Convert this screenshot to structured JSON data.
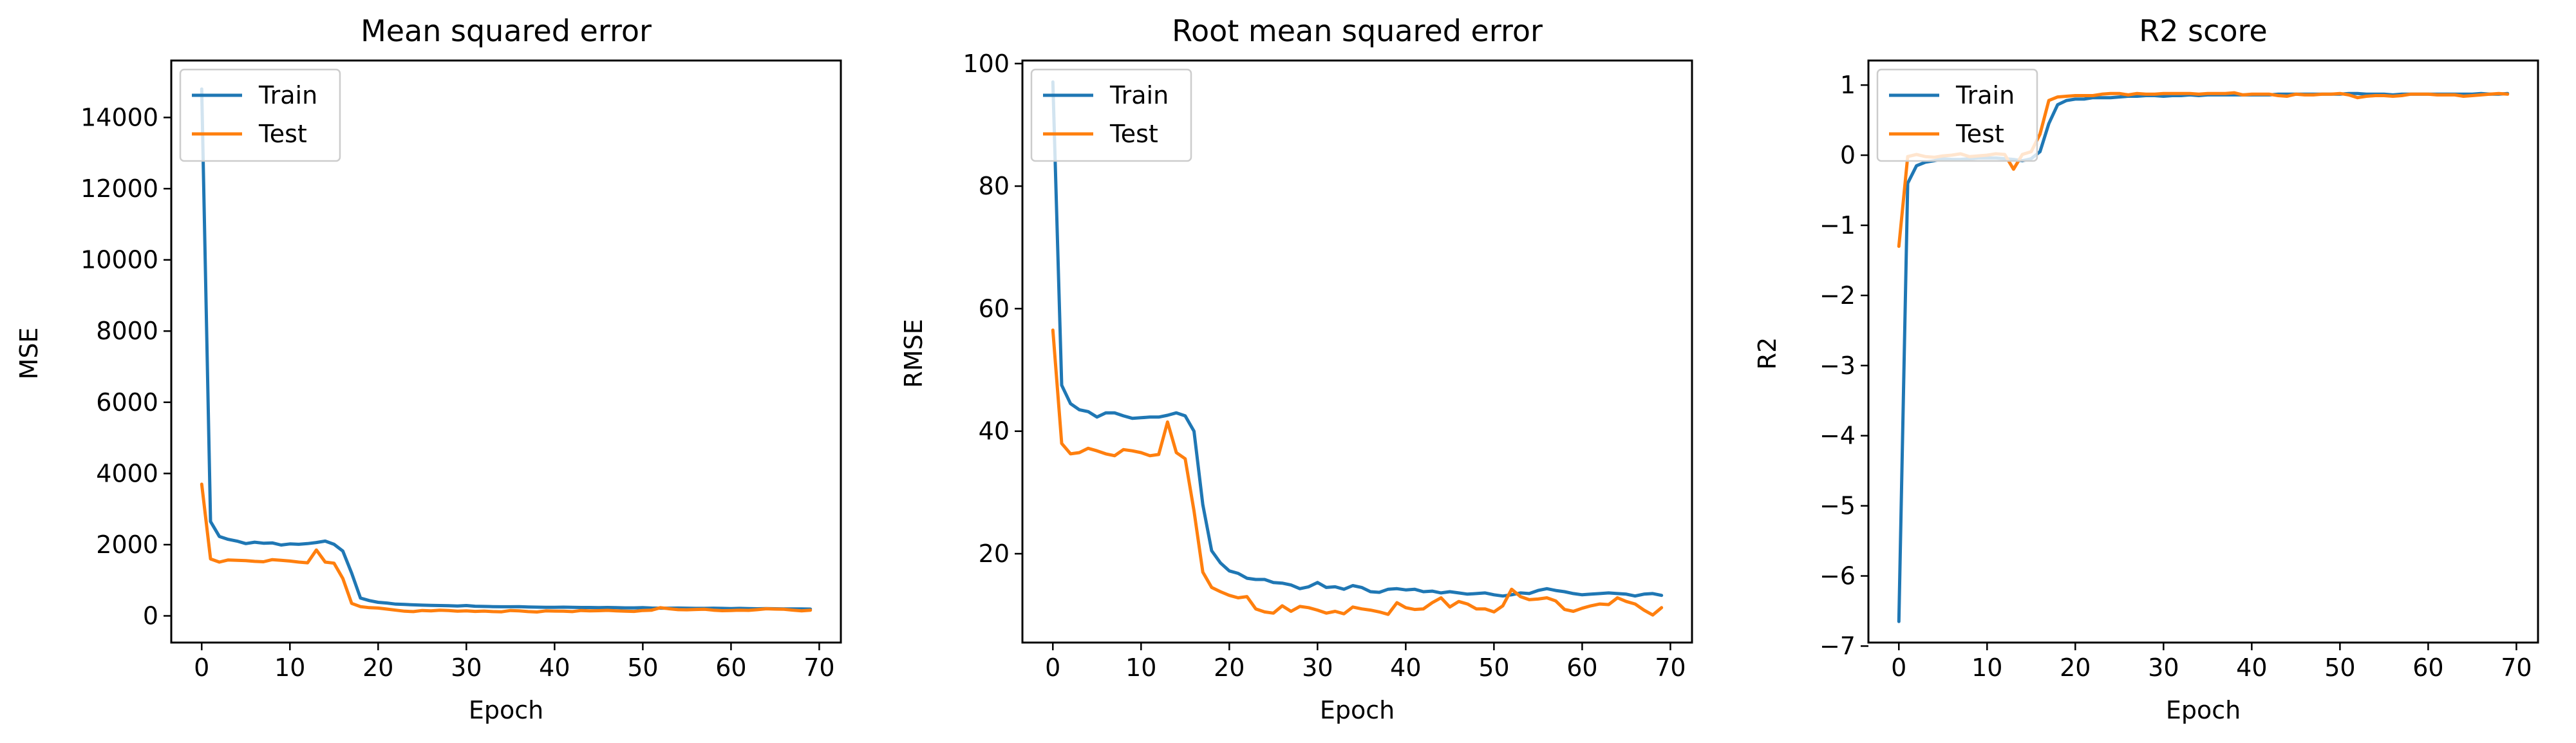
{
  "colors": {
    "train": "#1f77b4",
    "test": "#ff7f0e"
  },
  "chart_data": [
    {
      "type": "line",
      "title": "Mean squared error",
      "xlabel": "Epoch",
      "ylabel": "MSE",
      "xlim": [
        -3.45,
        72.45
      ],
      "ylim": [
        -750,
        15600
      ],
      "xticks": [
        0,
        10,
        20,
        30,
        40,
        50,
        60,
        70
      ],
      "yticks": [
        0,
        2000,
        4000,
        6000,
        8000,
        10000,
        12000,
        14000
      ],
      "ytick_labels": [
        "0",
        "2000",
        "4000",
        "6000",
        "8000",
        "10000",
        "12000",
        "14000"
      ],
      "legend": "upper-left",
      "series": [
        {
          "name": "Train",
          "color": "#1f77b4",
          "values": [
            14800,
            2650,
            2230,
            2150,
            2100,
            2030,
            2070,
            2040,
            2050,
            1990,
            2020,
            2010,
            2030,
            2060,
            2100,
            2010,
            1820,
            1200,
            500,
            430,
            380,
            360,
            330,
            320,
            310,
            300,
            295,
            290,
            285,
            275,
            290,
            270,
            265,
            260,
            255,
            255,
            260,
            250,
            245,
            240,
            240,
            245,
            240,
            235,
            235,
            230,
            235,
            230,
            225,
            225,
            230,
            220,
            215,
            215,
            220,
            215,
            210,
            210,
            215,
            210,
            205,
            210,
            205,
            200,
            205,
            200,
            195,
            195,
            195,
            190
          ]
        },
        {
          "name": "Test",
          "color": "#ff7f0e",
          "values": [
            3700,
            1600,
            1510,
            1570,
            1560,
            1550,
            1530,
            1520,
            1580,
            1560,
            1540,
            1510,
            1490,
            1850,
            1510,
            1480,
            1050,
            350,
            260,
            230,
            220,
            190,
            160,
            130,
            120,
            150,
            140,
            160,
            150,
            130,
            140,
            125,
            135,
            120,
            115,
            150,
            140,
            120,
            110,
            140,
            135,
            130,
            120,
            150,
            140,
            145,
            155,
            140,
            130,
            125,
            150,
            160,
            230,
            200,
            175,
            170,
            180,
            185,
            160,
            145,
            150,
            160,
            155,
            175,
            200,
            190,
            185,
            160,
            140,
            160
          ]
        }
      ]
    },
    {
      "type": "line",
      "title": "Root mean squared error",
      "xlabel": "Epoch",
      "ylabel": "RMSE",
      "xlim": [
        -3.45,
        72.45
      ],
      "ylim": [
        5.5,
        100.5
      ],
      "xticks": [
        0,
        10,
        20,
        30,
        40,
        50,
        60,
        70
      ],
      "yticks": [
        20,
        40,
        60,
        80,
        100
      ],
      "ytick_labels": [
        "20",
        "40",
        "60",
        "80",
        "100"
      ],
      "legend": "upper-left",
      "series": [
        {
          "name": "Train",
          "color": "#1f77b4",
          "values": [
            97,
            47.5,
            44.5,
            43.5,
            43.2,
            42.3,
            43,
            43,
            42.5,
            42.1,
            42.2,
            42.3,
            42.3,
            42.6,
            43,
            42.5,
            40,
            28,
            20.5,
            18.5,
            17.2,
            16.8,
            16,
            15.8,
            15.8,
            15.3,
            15.2,
            14.9,
            14.3,
            14.6,
            15.3,
            14.5,
            14.6,
            14.2,
            14.8,
            14.5,
            13.8,
            13.7,
            14.2,
            14.3,
            14.1,
            14.2,
            13.8,
            13.9,
            13.6,
            13.8,
            13.6,
            13.4,
            13.5,
            13.6,
            13.3,
            13.1,
            13.3,
            13.6,
            13.5,
            14,
            14.3,
            14,
            13.8,
            13.5,
            13.3,
            13.4,
            13.5,
            13.6,
            13.5,
            13.4,
            13.1,
            13.4,
            13.5,
            13.2
          ]
        },
        {
          "name": "Test",
          "color": "#ff7f0e",
          "values": [
            56.5,
            38,
            36.3,
            36.5,
            37.2,
            36.8,
            36.3,
            36,
            37,
            36.8,
            36.5,
            36,
            36.2,
            41.5,
            36.5,
            35.5,
            27,
            17,
            14.5,
            13.8,
            13.2,
            12.8,
            13,
            11,
            10.5,
            10.3,
            11.5,
            10.6,
            11.4,
            11.2,
            10.8,
            10.3,
            10.6,
            10.2,
            11.3,
            11,
            10.8,
            10.5,
            10.1,
            12,
            11.2,
            10.9,
            11,
            12,
            12.8,
            11.3,
            12.2,
            11.8,
            11,
            11,
            10.5,
            11.5,
            14.2,
            13,
            12.5,
            12.6,
            12.8,
            12.3,
            10.9,
            10.6,
            11.1,
            11.5,
            11.8,
            11.7,
            12.8,
            12.2,
            11.8,
            10.8,
            10,
            11.2
          ]
        }
      ]
    },
    {
      "type": "line",
      "title": "R2 score",
      "xlabel": "Epoch",
      "ylabel": "R2",
      "xlim": [
        -3.45,
        72.45
      ],
      "ylim": [
        -6.95,
        1.35
      ],
      "xticks": [
        0,
        10,
        20,
        30,
        40,
        50,
        60,
        70
      ],
      "yticks": [
        -7,
        -6,
        -5,
        -4,
        -3,
        -2,
        -1,
        0,
        1
      ],
      "ytick_labels": [
        "−7",
        "−6",
        "−5",
        "−4",
        "−3",
        "−2",
        "−1",
        "0",
        "1"
      ],
      "legend": "upper-left",
      "series": [
        {
          "name": "Train",
          "color": "#1f77b4",
          "values": [
            -6.65,
            -0.4,
            -0.15,
            -0.1,
            -0.08,
            -0.05,
            -0.06,
            -0.06,
            -0.05,
            -0.04,
            -0.04,
            -0.04,
            -0.05,
            -0.06,
            -0.08,
            -0.05,
            0.05,
            0.45,
            0.72,
            0.78,
            0.8,
            0.8,
            0.82,
            0.82,
            0.82,
            0.83,
            0.84,
            0.84,
            0.85,
            0.85,
            0.84,
            0.85,
            0.85,
            0.86,
            0.85,
            0.86,
            0.86,
            0.86,
            0.86,
            0.86,
            0.86,
            0.86,
            0.86,
            0.87,
            0.87,
            0.87,
            0.87,
            0.87,
            0.87,
            0.87,
            0.87,
            0.88,
            0.88,
            0.87,
            0.87,
            0.87,
            0.86,
            0.87,
            0.87,
            0.87,
            0.87,
            0.87,
            0.87,
            0.87,
            0.87,
            0.87,
            0.88,
            0.87,
            0.87,
            0.88
          ]
        },
        {
          "name": "Test",
          "color": "#ff7f0e",
          "values": [
            -1.3,
            -0.02,
            0.01,
            -0.02,
            -0.03,
            -0.01,
            0.0,
            0.02,
            -0.02,
            -0.01,
            0.0,
            0.02,
            0.01,
            -0.2,
            0.01,
            0.05,
            0.3,
            0.78,
            0.83,
            0.84,
            0.85,
            0.85,
            0.85,
            0.87,
            0.88,
            0.88,
            0.86,
            0.88,
            0.87,
            0.87,
            0.88,
            0.88,
            0.88,
            0.88,
            0.87,
            0.88,
            0.88,
            0.88,
            0.89,
            0.86,
            0.87,
            0.87,
            0.87,
            0.85,
            0.84,
            0.87,
            0.86,
            0.86,
            0.87,
            0.87,
            0.88,
            0.86,
            0.82,
            0.84,
            0.85,
            0.85,
            0.84,
            0.85,
            0.87,
            0.87,
            0.87,
            0.86,
            0.86,
            0.86,
            0.84,
            0.85,
            0.86,
            0.87,
            0.88,
            0.87
          ]
        }
      ]
    }
  ]
}
